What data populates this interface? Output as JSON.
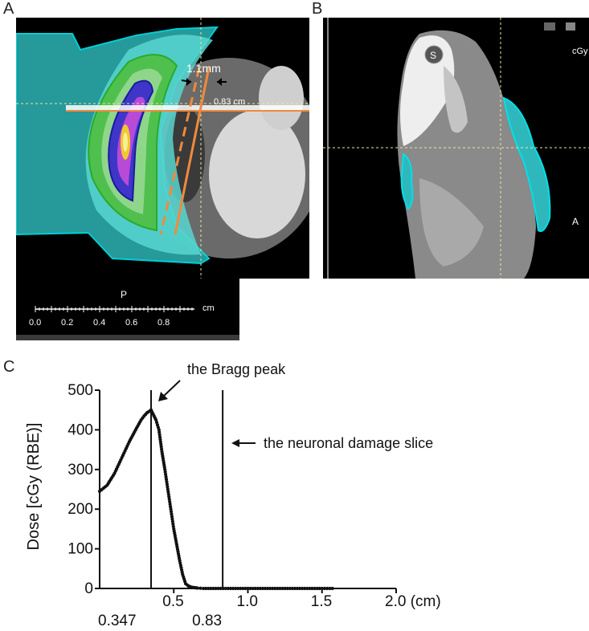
{
  "panels": {
    "a": {
      "letter": "A",
      "annotation_thickness": "1.1mm",
      "annotation_distance": "0.83 cm",
      "orientation_label": "P",
      "scale_unit": "cm",
      "scale_ticks": [
        "0.0",
        "0.2",
        "0.4",
        "0.6",
        "0.8"
      ]
    },
    "b": {
      "letter": "B",
      "marker_label": "S",
      "corner_label": "cGy",
      "side_label": "A"
    },
    "c": {
      "letter": "C",
      "annotation_peak": "the Bragg peak",
      "annotation_slice": "the neuronal damage slice"
    }
  },
  "colors": {
    "background": "#000000",
    "cyan_contour": "#00c8d0",
    "orange_line": "#f08a3c",
    "crosshair": "#e8e89a"
  },
  "chart_data": {
    "type": "line",
    "title": "",
    "xlabel": "",
    "ylabel": "Dose [cGy (RBE)]",
    "xlim": [
      0,
      2.0
    ],
    "ylim": [
      0,
      500
    ],
    "x_ticks": [
      "0.5",
      "1.0",
      "1.5",
      "2.0 (cm)"
    ],
    "x_tick_values": [
      0.5,
      1.0,
      1.5,
      2.0
    ],
    "y_ticks": [
      "0",
      "100",
      "200",
      "300",
      "400",
      "500"
    ],
    "y_tick_values": [
      0,
      100,
      200,
      300,
      400,
      500
    ],
    "vlines": [
      {
        "x": 0.347,
        "label": "0.347"
      },
      {
        "x": 0.83,
        "label": "0.83"
      }
    ],
    "series": [
      {
        "x": [
          0.0,
          0.05,
          0.1,
          0.15,
          0.2,
          0.25,
          0.28,
          0.3,
          0.32,
          0.34,
          0.347,
          0.36,
          0.38,
          0.4,
          0.42,
          0.44,
          0.46,
          0.48,
          0.5,
          0.52,
          0.54,
          0.56,
          0.58,
          0.6,
          0.62,
          0.64,
          0.66,
          0.7,
          0.75,
          0.8,
          0.9,
          1.0,
          1.2,
          1.4,
          1.5,
          1.57
        ],
        "y": [
          245,
          260,
          290,
          330,
          370,
          405,
          425,
          435,
          443,
          448,
          450,
          440,
          425,
          400,
          345,
          300,
          250,
          200,
          150,
          110,
          70,
          35,
          12,
          6,
          3,
          2,
          1,
          0,
          0,
          0,
          0,
          0,
          0,
          0,
          0,
          0
        ]
      }
    ]
  }
}
